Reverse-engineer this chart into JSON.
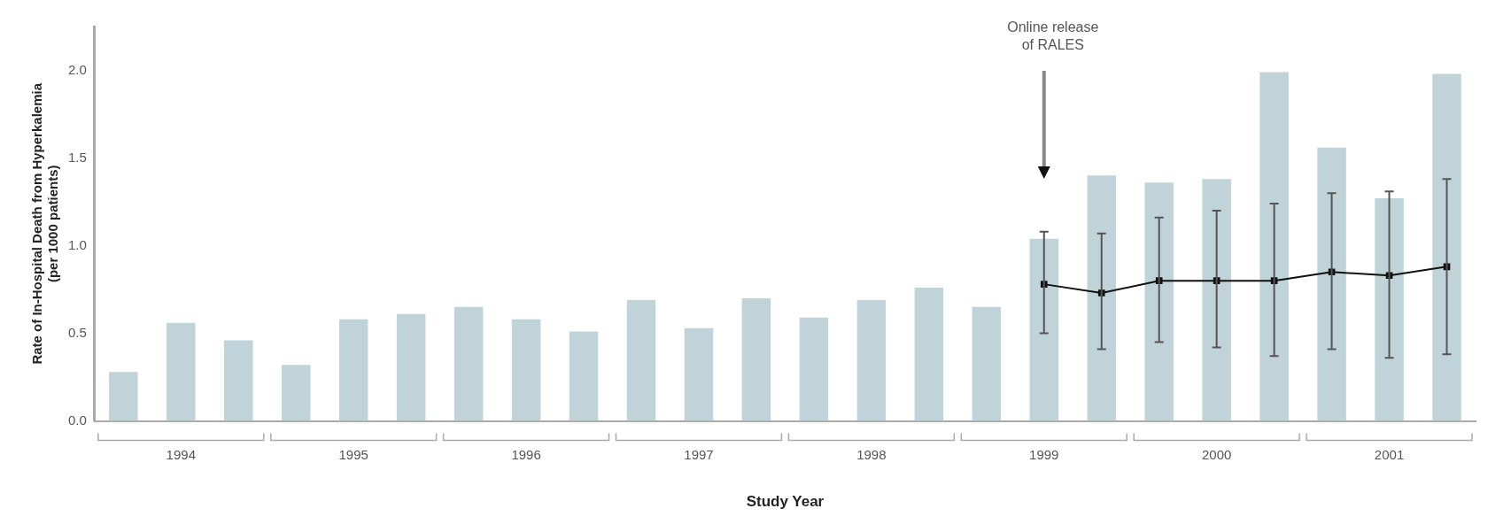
{
  "chart_data": {
    "type": "bar",
    "xlabel": "Study Year",
    "ylabel": "Rate of In-Hospital Death from Hyperkalemia\n(per 1000 patients)",
    "categories": [
      null,
      "1994",
      null,
      null,
      "1995",
      null,
      null,
      "1996",
      null,
      null,
      "1997",
      null,
      null,
      "1998",
      null,
      null,
      "1999",
      null,
      null,
      "2000",
      null,
      null,
      "2001",
      null
    ],
    "series": [
      {
        "color": "#c0d3d8",
        "values": [
          0.28,
          0.56,
          0.46,
          0.32,
          0.58,
          0.61,
          0.65,
          0.58,
          0.51,
          0.69,
          0.53,
          0.7,
          0.59,
          0.69,
          0.76,
          0.65,
          1.04,
          1.4,
          1.36,
          1.38,
          1.99,
          1.56,
          1.27,
          1.98
        ]
      },
      {
        "type": "line",
        "color": "#111111",
        "marker": "square",
        "values": [
          null,
          null,
          null,
          null,
          null,
          null,
          null,
          null,
          null,
          null,
          null,
          null,
          null,
          null,
          null,
          null,
          0.78,
          0.73,
          0.8,
          0.8,
          0.8,
          0.85,
          0.83,
          0.88
        ],
        "errors": [
          null,
          null,
          null,
          null,
          null,
          null,
          null,
          null,
          null,
          null,
          null,
          null,
          null,
          null,
          null,
          null,
          [
            0.5,
            1.08
          ],
          [
            0.41,
            1.07
          ],
          [
            0.45,
            1.16
          ],
          [
            0.42,
            1.2
          ],
          [
            0.37,
            1.24
          ],
          [
            0.41,
            1.3
          ],
          [
            0.36,
            1.31
          ],
          [
            0.38,
            1.38
          ]
        ]
      }
    ],
    "ylim": [
      0,
      2.25
    ],
    "yticks": [
      {
        "value": 0,
        "label": "0.0"
      },
      {
        "value": 0.5,
        "label": "0.5"
      },
      {
        "value": 1,
        "label": "1.0"
      },
      {
        "value": 1.5,
        "label": "1.5"
      },
      {
        "value": 2,
        "label": "2.0"
      }
    ],
    "annotations": [
      "Online release of RALES"
    ],
    "grid": false,
    "legend": false
  }
}
